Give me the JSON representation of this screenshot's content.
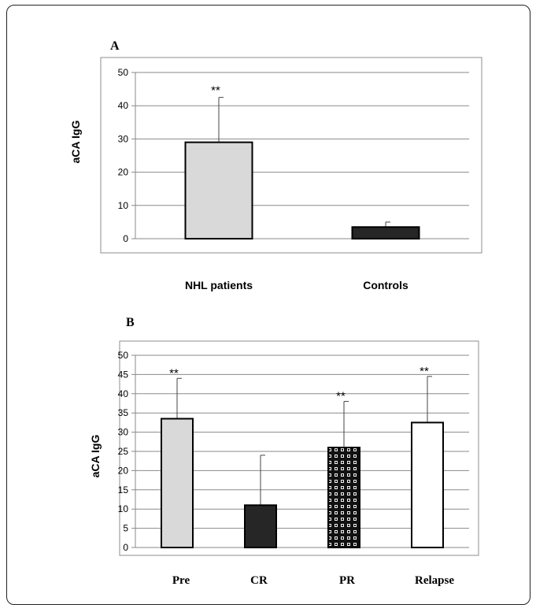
{
  "chart_data": [
    {
      "panel": "A",
      "type": "bar",
      "ylabel": "aCA  IgG",
      "ylim": [
        0,
        50
      ],
      "yticks": [
        0,
        10,
        20,
        30,
        40,
        50
      ],
      "grid": true,
      "categories": [
        "NHL patients",
        "Controls"
      ],
      "values": [
        29,
        3.5
      ],
      "error": [
        13.5,
        1.5
      ],
      "annotations": [
        "**",
        ""
      ],
      "fills": [
        "#d9d9d9",
        "#262626"
      ]
    },
    {
      "panel": "B",
      "type": "bar",
      "ylabel": "aCA  IgG",
      "ylim": [
        0,
        50
      ],
      "yticks": [
        0,
        5,
        10,
        15,
        20,
        25,
        30,
        35,
        40,
        45,
        50
      ],
      "grid": true,
      "categories": [
        "Pre",
        "CR",
        "PR",
        "Relapse"
      ],
      "values": [
        33.5,
        11,
        26,
        32.5
      ],
      "error": [
        10.5,
        13,
        12,
        12
      ],
      "annotations": [
        "**",
        "",
        "**",
        "**"
      ],
      "fills": [
        "#d9d9d9",
        "#262626",
        "pattern",
        "#ffffff"
      ]
    }
  ]
}
